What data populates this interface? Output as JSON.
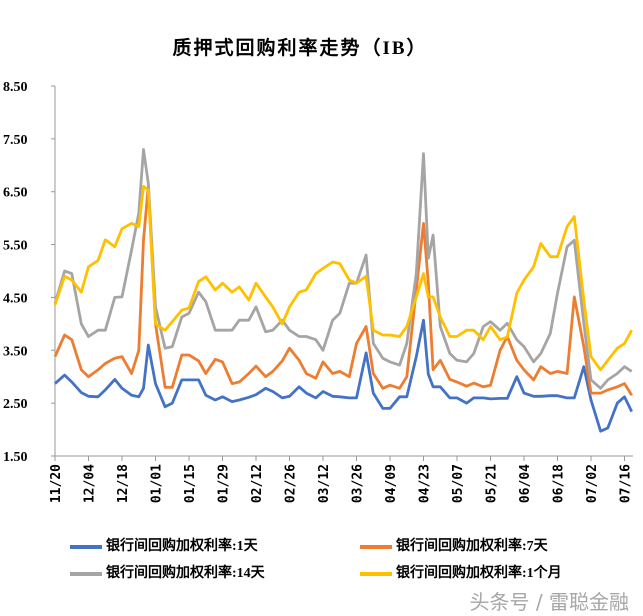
{
  "chart_data": {
    "type": "line",
    "title": "质押式回购利率走势（IB）",
    "xlabel": "",
    "ylabel": "",
    "ylim": [
      1.5,
      8.5
    ],
    "yticks": [
      "1.50",
      "2.50",
      "3.50",
      "4.50",
      "5.50",
      "6.50",
      "7.50",
      "8.50"
    ],
    "xtick_labels": [
      "11/20",
      "12/04",
      "12/18",
      "01/01",
      "01/15",
      "01/29",
      "02/12",
      "02/26",
      "03/12",
      "03/26",
      "04/09",
      "04/23",
      "05/07",
      "05/21",
      "06/04",
      "06/18",
      "07/02",
      "07/16"
    ],
    "grid": false,
    "legend_position": "bottom",
    "x": [
      "11/20",
      "11/24",
      "11/27",
      "12/01",
      "12/04",
      "12/08",
      "12/11",
      "12/15",
      "12/18",
      "12/22",
      "12/25",
      "12/27",
      "12/29",
      "01/01",
      "01/05",
      "01/08",
      "01/12",
      "01/15",
      "01/19",
      "01/22",
      "01/26",
      "01/29",
      "02/02",
      "02/05",
      "02/09",
      "02/12",
      "02/16",
      "02/19",
      "02/23",
      "02/26",
      "03/02",
      "03/05",
      "03/09",
      "03/12",
      "03/16",
      "03/19",
      "03/23",
      "03/26",
      "03/30",
      "04/02",
      "04/06",
      "04/09",
      "04/13",
      "04/16",
      "04/20",
      "04/23",
      "04/25",
      "04/27",
      "04/30",
      "05/04",
      "05/07",
      "05/11",
      "05/14",
      "05/18",
      "05/21",
      "05/25",
      "05/28",
      "06/01",
      "06/04",
      "06/08",
      "06/11",
      "06/15",
      "06/18",
      "06/22",
      "06/25",
      "06/29",
      "07/02",
      "07/06",
      "07/09",
      "07/13",
      "07/16",
      "07/19"
    ],
    "series": [
      {
        "name": "银行间回购加权利率:1天",
        "color": "#4472C4",
        "values": [
          2.87,
          3.03,
          2.9,
          2.7,
          2.63,
          2.62,
          2.75,
          2.95,
          2.78,
          2.65,
          2.62,
          2.78,
          3.6,
          2.87,
          2.43,
          2.5,
          2.94,
          2.94,
          2.94,
          2.65,
          2.56,
          2.62,
          2.53,
          2.56,
          2.61,
          2.66,
          2.78,
          2.72,
          2.6,
          2.63,
          2.81,
          2.69,
          2.6,
          2.72,
          2.63,
          2.62,
          2.6,
          2.6,
          3.45,
          2.69,
          2.4,
          2.4,
          2.62,
          2.62,
          3.38,
          4.07,
          3.05,
          2.81,
          2.81,
          2.6,
          2.6,
          2.5,
          2.6,
          2.6,
          2.58,
          2.59,
          2.59,
          3.0,
          2.69,
          2.63,
          2.63,
          2.64,
          2.64,
          2.6,
          2.6,
          3.19,
          2.56,
          1.97,
          2.03,
          2.5,
          2.62,
          2.34
        ]
      },
      {
        "name": "银行间回购加权利率:7天",
        "color": "#ED7D31",
        "values": [
          3.38,
          3.79,
          3.7,
          3.13,
          3.0,
          3.13,
          3.25,
          3.35,
          3.38,
          3.06,
          3.5,
          5.58,
          6.6,
          4.0,
          2.8,
          2.8,
          3.41,
          3.41,
          3.3,
          3.06,
          3.33,
          3.28,
          2.87,
          2.9,
          3.06,
          3.2,
          3.0,
          3.1,
          3.3,
          3.54,
          3.31,
          3.06,
          2.97,
          3.28,
          3.06,
          3.1,
          3.0,
          3.63,
          3.95,
          3.06,
          2.78,
          2.84,
          2.78,
          3.0,
          4.64,
          5.9,
          4.77,
          3.13,
          3.31,
          2.95,
          2.9,
          2.82,
          2.88,
          2.81,
          2.84,
          3.5,
          3.76,
          3.31,
          3.13,
          2.94,
          3.19,
          3.06,
          3.1,
          3.06,
          4.51,
          3.57,
          2.69,
          2.69,
          2.75,
          2.81,
          2.87,
          2.65
        ]
      },
      {
        "name": "银行间回购加权利率:14天",
        "color": "#A5A5A5",
        "values": [
          4.39,
          5.0,
          4.95,
          4.0,
          3.76,
          3.88,
          3.88,
          4.5,
          4.51,
          5.4,
          6.1,
          7.3,
          6.66,
          4.32,
          3.54,
          3.57,
          4.13,
          4.2,
          4.6,
          4.42,
          3.88,
          3.88,
          3.88,
          4.07,
          4.07,
          4.32,
          3.85,
          3.88,
          4.07,
          3.88,
          3.76,
          3.76,
          3.7,
          3.5,
          4.07,
          4.2,
          4.77,
          4.77,
          5.3,
          3.63,
          3.35,
          3.28,
          3.22,
          3.63,
          4.95,
          7.22,
          5.24,
          5.68,
          3.95,
          3.44,
          3.31,
          3.28,
          3.44,
          3.95,
          4.04,
          3.88,
          4.01,
          3.7,
          3.57,
          3.28,
          3.44,
          3.82,
          4.58,
          5.46,
          5.58,
          4.01,
          2.94,
          2.78,
          2.94,
          3.06,
          3.19,
          3.1
        ]
      },
      {
        "name": "银行间回购加权利率:1个月",
        "color": "#FFC000",
        "values": [
          4.36,
          4.9,
          4.83,
          4.6,
          5.08,
          5.2,
          5.59,
          5.46,
          5.8,
          5.9,
          5.84,
          6.6,
          6.53,
          4.0,
          3.88,
          4.04,
          4.26,
          4.3,
          4.8,
          4.89,
          4.64,
          4.77,
          4.6,
          4.7,
          4.45,
          4.77,
          4.51,
          4.32,
          4.0,
          4.32,
          4.6,
          4.64,
          4.95,
          5.05,
          5.17,
          5.14,
          4.83,
          4.77,
          4.9,
          3.88,
          3.79,
          3.79,
          3.76,
          3.95,
          4.51,
          4.95,
          4.51,
          4.51,
          4.13,
          3.76,
          3.76,
          3.88,
          3.88,
          3.7,
          3.95,
          3.7,
          3.75,
          4.58,
          4.83,
          5.08,
          5.52,
          5.27,
          5.27,
          5.84,
          6.03,
          4.45,
          3.38,
          3.13,
          3.31,
          3.54,
          3.63,
          3.88
        ]
      }
    ]
  },
  "watermark": "头条号 / 雷聪金融"
}
